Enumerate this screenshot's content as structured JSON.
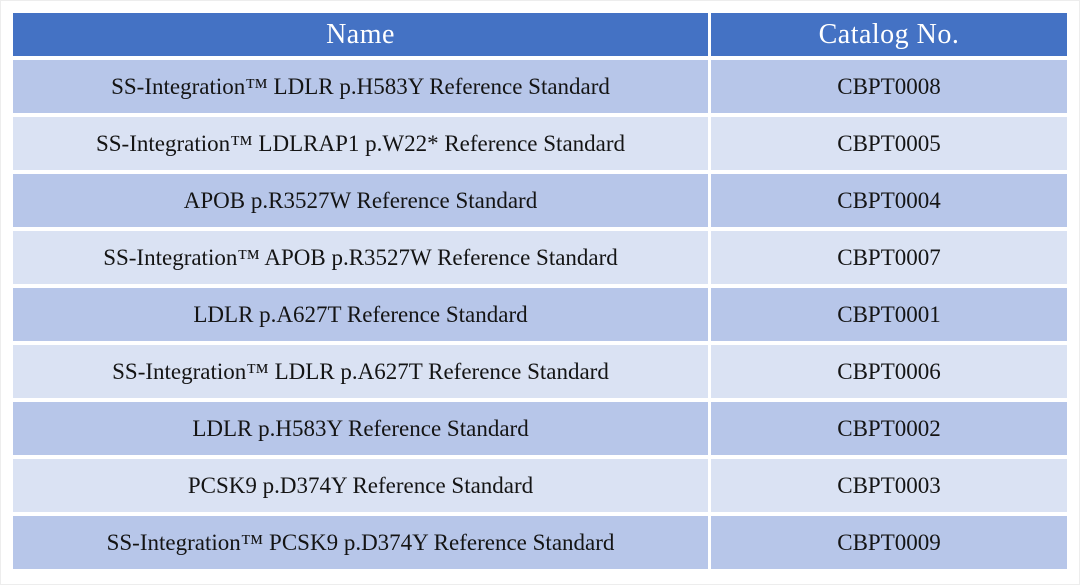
{
  "table": {
    "columns": [
      {
        "label": "Name"
      },
      {
        "label": "Catalog No."
      }
    ],
    "rows": [
      {
        "name": "SS-Integration™ LDLR p.H583Y Reference Standard",
        "catalog": "CBPT0008"
      },
      {
        "name": "SS-Integration™ LDLRAP1 p.W22* Reference Standard",
        "catalog": "CBPT0005"
      },
      {
        "name": "APOB p.R3527W Reference Standard",
        "catalog": "CBPT0004"
      },
      {
        "name": "SS-Integration™ APOB p.R3527W Reference Standard",
        "catalog": "CBPT0007"
      },
      {
        "name": "LDLR p.A627T Reference Standard",
        "catalog": "CBPT0001"
      },
      {
        "name": "SS-Integration™ LDLR p.A627T Reference Standard",
        "catalog": "CBPT0006"
      },
      {
        "name": "LDLR p.H583Y Reference Standard",
        "catalog": "CBPT0002"
      },
      {
        "name": "PCSK9 p.D374Y Reference Standard",
        "catalog": "CBPT0003"
      },
      {
        "name": "SS-Integration™ PCSK9 p.D374Y Reference Standard",
        "catalog": "CBPT0009"
      }
    ]
  },
  "colors": {
    "header_bg": "#4472C4",
    "header_text": "#FFFFFF",
    "band_dark": "#B7C6E9",
    "band_light": "#DAE2F3",
    "body_text": "#141414",
    "divider": "#FFFFFF"
  }
}
